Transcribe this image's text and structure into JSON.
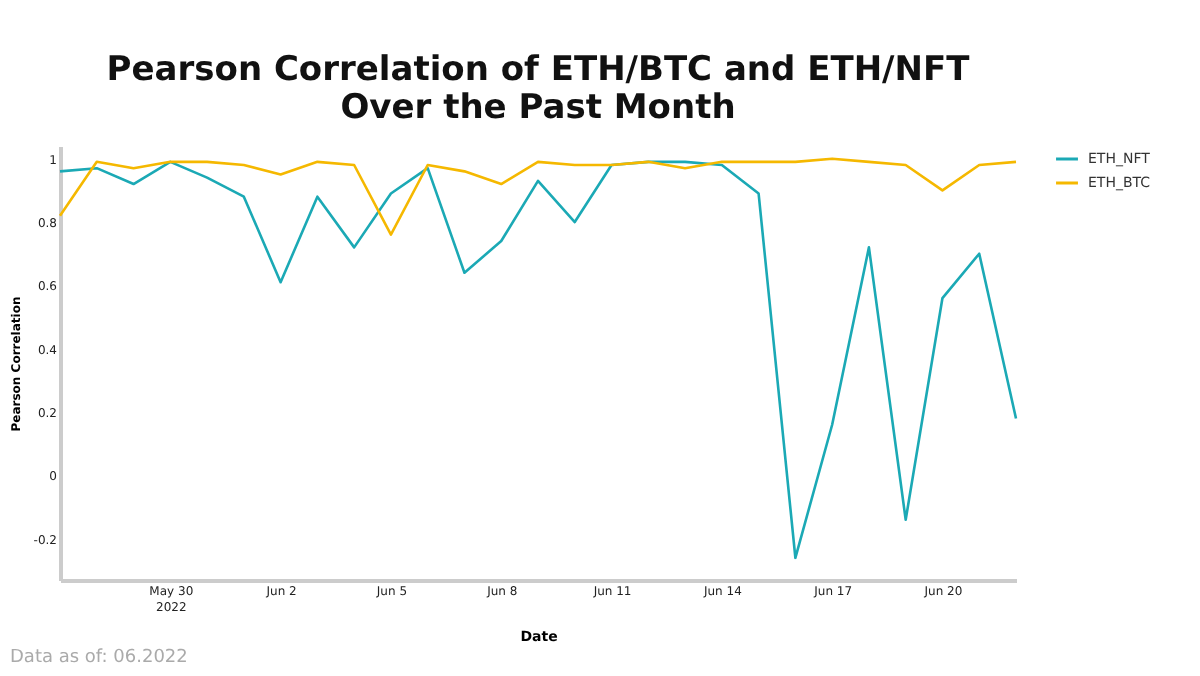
{
  "chart_data": {
    "type": "line",
    "title": "Pearson Correlation of ETH/BTC and ETH/NFT\nOver the Past Month",
    "xlabel": "Date",
    "ylabel": "Pearson Correlation",
    "x": [
      "2022-05-27",
      "2022-05-28",
      "2022-05-29",
      "2022-05-30",
      "2022-05-31",
      "2022-06-01",
      "2022-06-02",
      "2022-06-03",
      "2022-06-04",
      "2022-06-05",
      "2022-06-06",
      "2022-06-07",
      "2022-06-08",
      "2022-06-09",
      "2022-06-10",
      "2022-06-11",
      "2022-06-12",
      "2022-06-13",
      "2022-06-14",
      "2022-06-15",
      "2022-06-16",
      "2022-06-17",
      "2022-06-18",
      "2022-06-19",
      "2022-06-20",
      "2022-06-21",
      "2022-06-22"
    ],
    "series": [
      {
        "name": "ETH_NFT",
        "color": "#1ba9b5",
        "values": [
          0.96,
          0.97,
          0.92,
          0.99,
          0.94,
          0.88,
          0.61,
          0.88,
          0.72,
          0.89,
          0.97,
          0.64,
          0.74,
          0.93,
          0.8,
          0.98,
          0.99,
          0.99,
          0.98,
          0.89,
          -0.26,
          0.16,
          0.72,
          -0.14,
          0.56,
          0.7,
          0.18
        ]
      },
      {
        "name": "ETH_BTC",
        "color": "#f5b800",
        "values": [
          0.82,
          0.99,
          0.97,
          0.99,
          0.99,
          0.98,
          0.95,
          0.99,
          0.98,
          0.76,
          0.98,
          0.96,
          0.92,
          0.99,
          0.98,
          0.98,
          0.99,
          0.97,
          0.99,
          0.99,
          0.99,
          1.0,
          0.99,
          0.98,
          0.9,
          0.98,
          0.99
        ]
      }
    ],
    "xlim": [
      "2022-05-27",
      "2022-06-22"
    ],
    "xticks": [
      {
        "value": "2022-05-30",
        "label": "May 30\n2022"
      },
      {
        "value": "2022-06-02",
        "label": "Jun 2"
      },
      {
        "value": "2022-06-05",
        "label": "Jun 5"
      },
      {
        "value": "2022-06-08",
        "label": "Jun 8"
      },
      {
        "value": "2022-06-11",
        "label": "Jun 11"
      },
      {
        "value": "2022-06-14",
        "label": "Jun 14"
      },
      {
        "value": "2022-06-17",
        "label": "Jun 17"
      },
      {
        "value": "2022-06-20",
        "label": "Jun 20"
      }
    ],
    "ylim": [
      -0.33,
      1.04
    ],
    "yticks": [
      -0.2,
      0,
      0.2,
      0.4,
      0.6,
      0.8,
      1
    ],
    "grid": false,
    "legend": "top right",
    "marker": "none",
    "line_style": "solid",
    "annotations": [
      "Data as of: 06.2022"
    ]
  }
}
